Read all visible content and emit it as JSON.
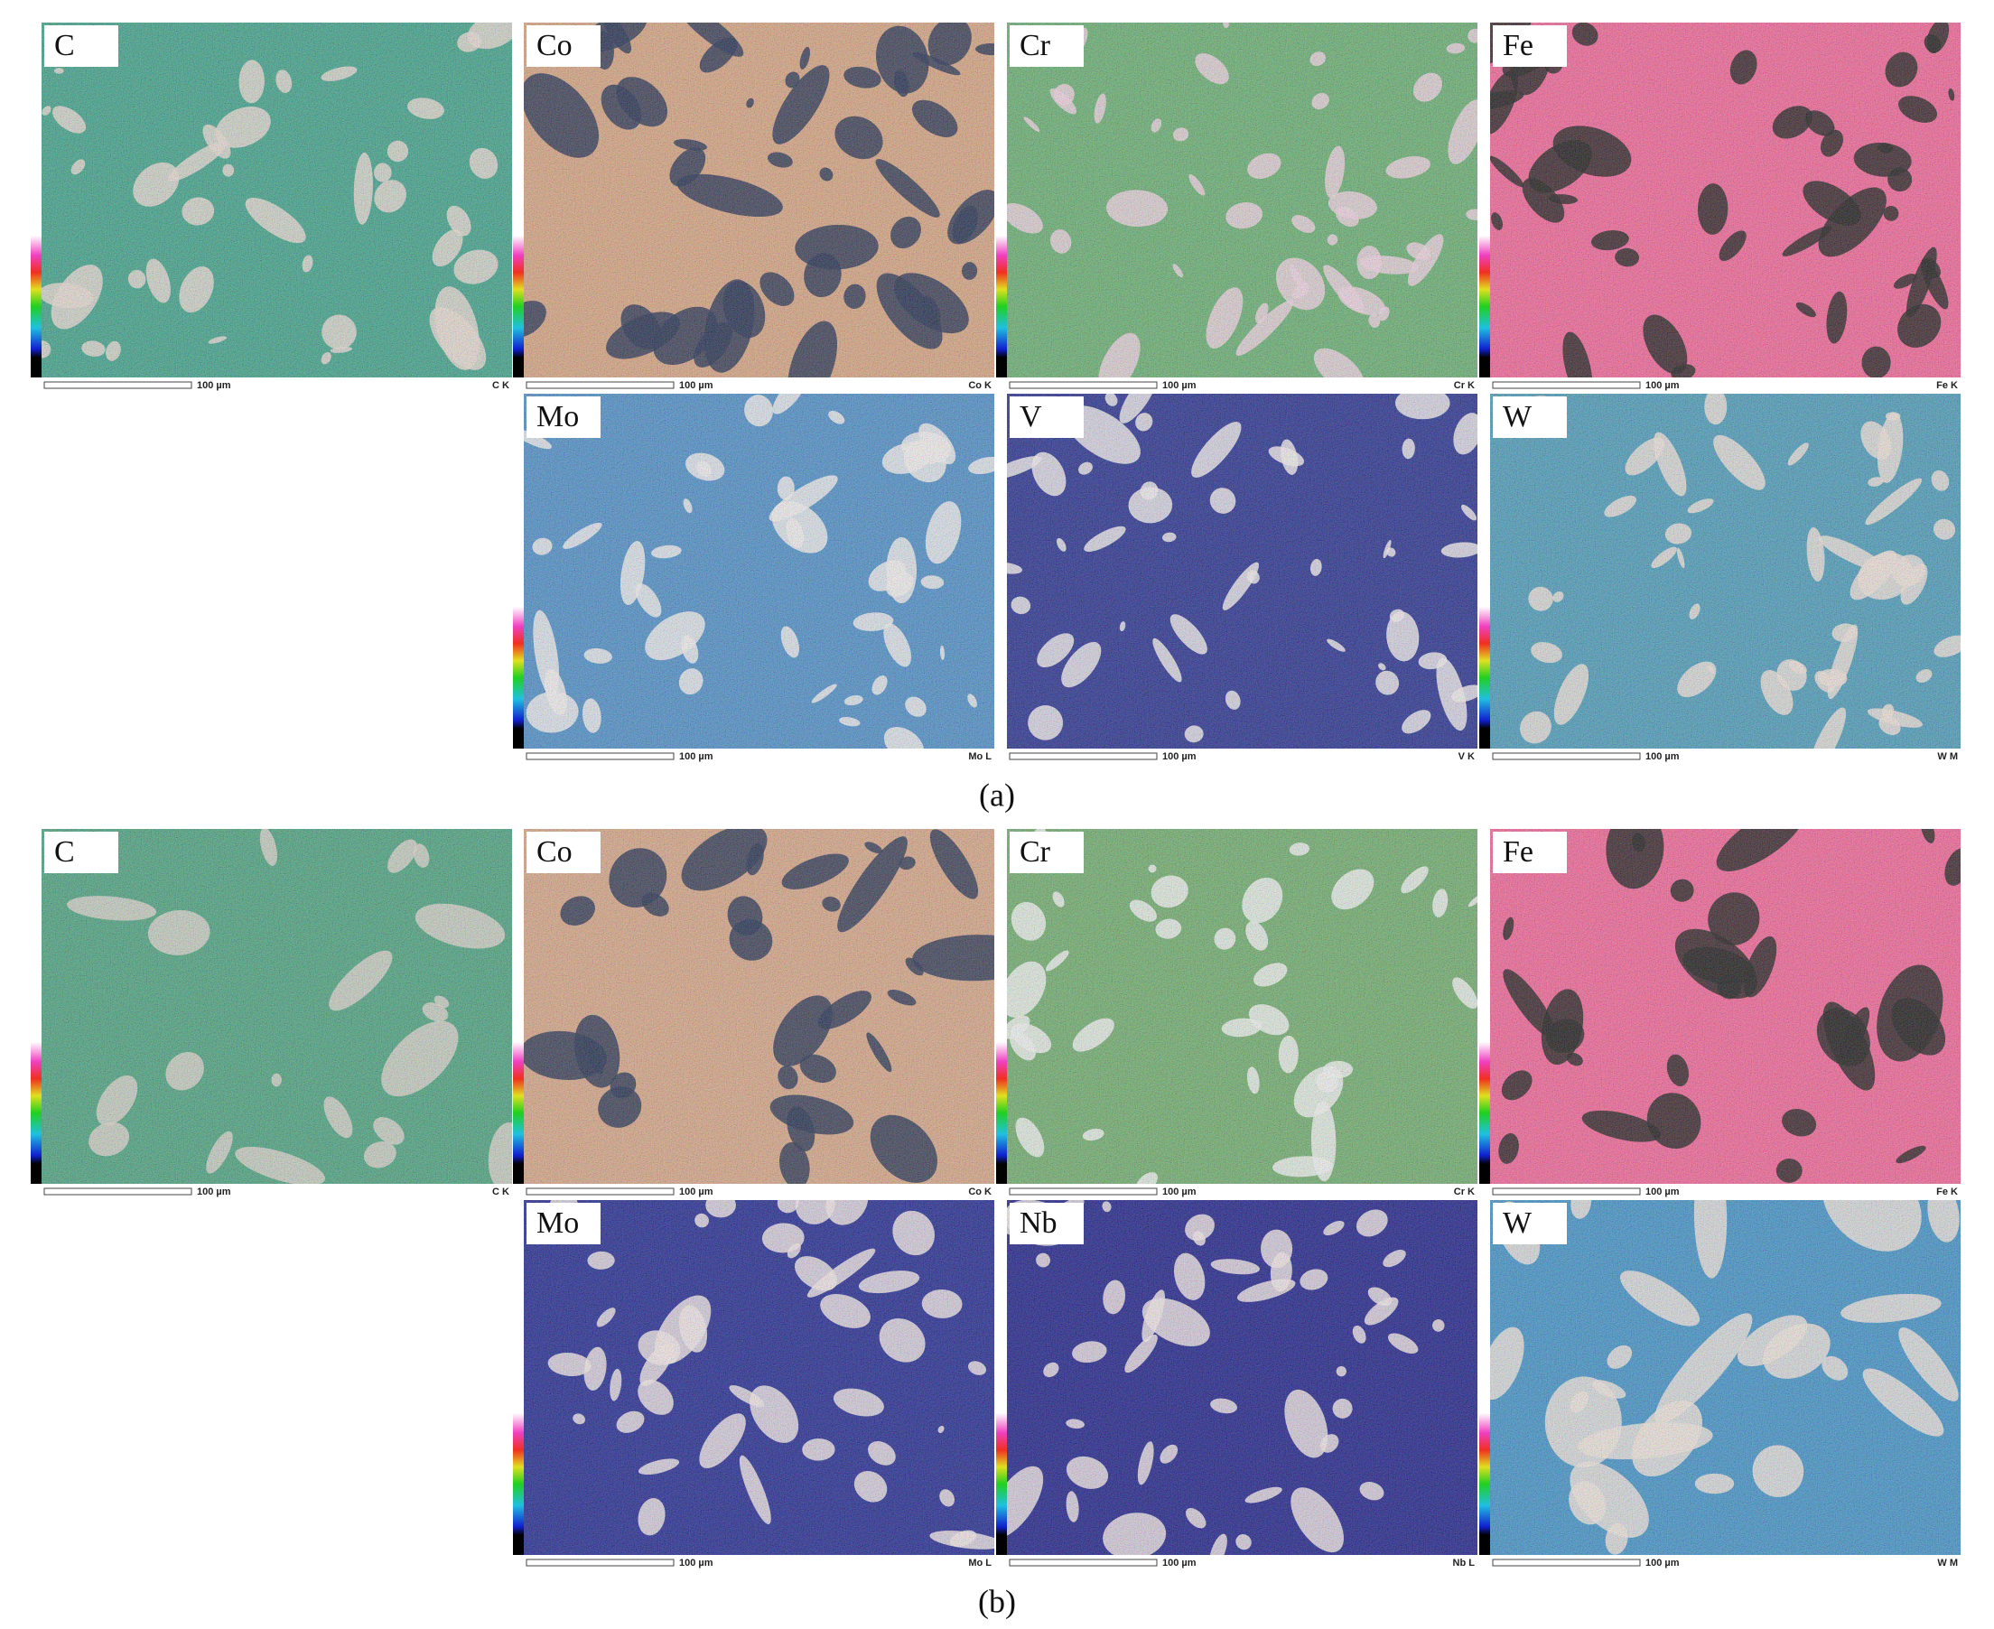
{
  "figure": {
    "parts": [
      {
        "label": "(a)",
        "panels": [
          {
            "element": "C",
            "signal": "C K",
            "scale_bar": "100 µm"
          },
          {
            "element": "Co",
            "signal": "Co K",
            "scale_bar": "100 µm"
          },
          {
            "element": "Cr",
            "signal": "Cr K",
            "scale_bar": "100 µm"
          },
          {
            "element": "Fe",
            "signal": "Fe K",
            "scale_bar": "100 µm"
          },
          {
            "element": "Mo",
            "signal": "Mo L",
            "scale_bar": "100 µm"
          },
          {
            "element": "V",
            "signal": "V K",
            "scale_bar": "100 µm"
          },
          {
            "element": "W",
            "signal": "W M",
            "scale_bar": "100 µm"
          }
        ]
      },
      {
        "label": "(b)",
        "panels": [
          {
            "element": "C",
            "signal": "C K",
            "scale_bar": "100 µm"
          },
          {
            "element": "Co",
            "signal": "Co K",
            "scale_bar": "100 µm"
          },
          {
            "element": "Cr",
            "signal": "Cr K",
            "scale_bar": "100 µm"
          },
          {
            "element": "Fe",
            "signal": "Fe K",
            "scale_bar": "100 µm"
          },
          {
            "element": "Mo",
            "signal": "Mo L",
            "scale_bar": "100 µm"
          },
          {
            "element": "Nb",
            "signal": "Nb L",
            "scale_bar": "100 µm"
          },
          {
            "element": "W",
            "signal": "W M",
            "scale_bar": "100 µm"
          }
        ]
      }
    ]
  }
}
